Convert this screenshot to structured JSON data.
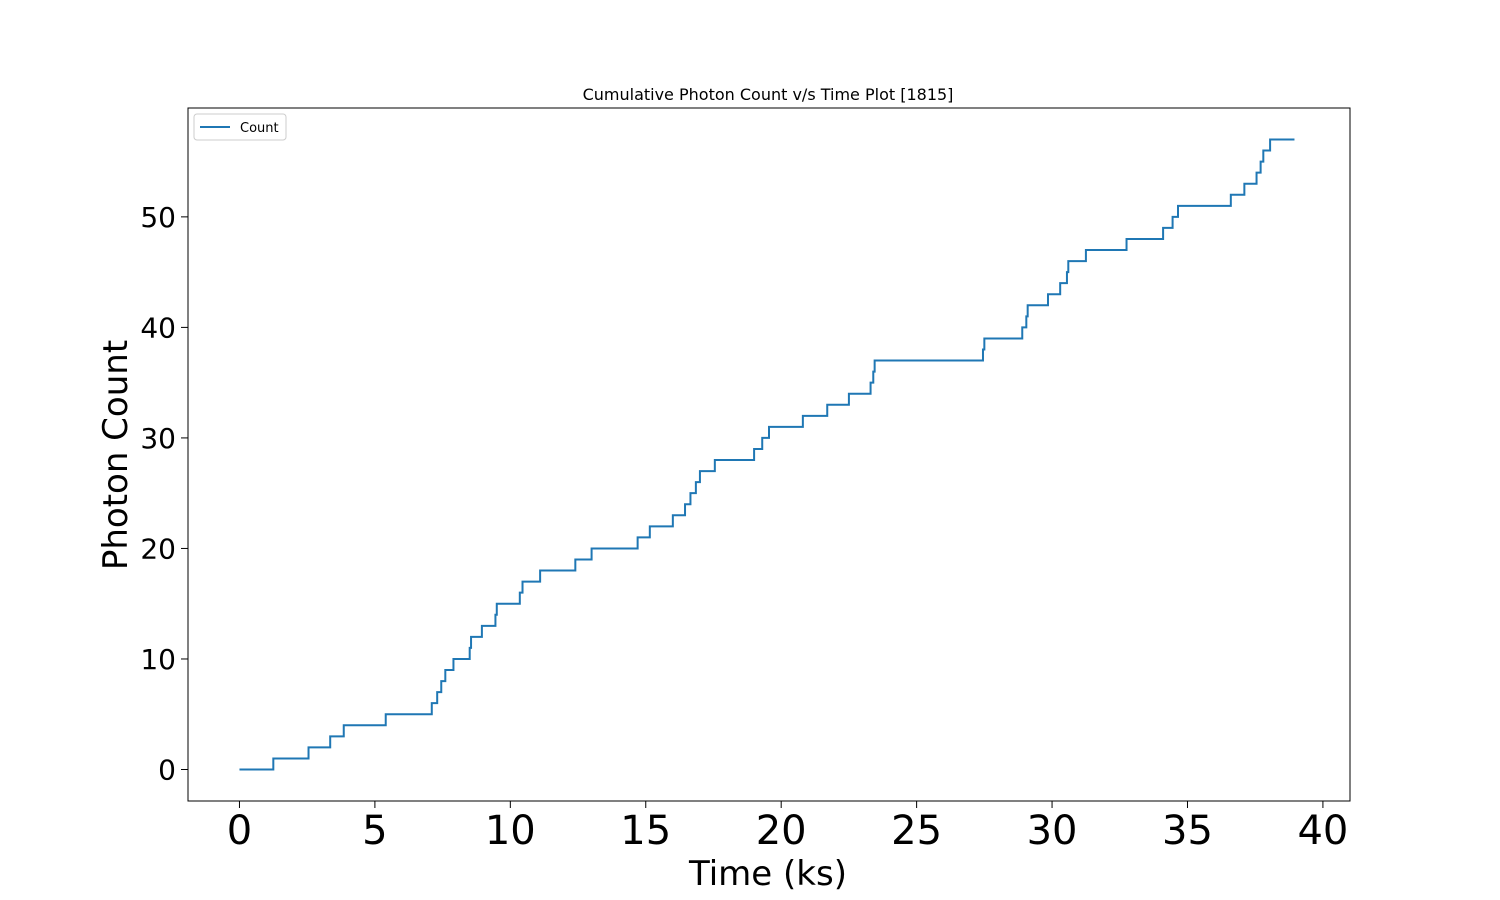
{
  "chart_data": {
    "type": "line",
    "step": true,
    "title": "Cumulative Photon Count v/s Time Plot [1815]",
    "xlabel": "Time (ks)",
    "ylabel": "Photon Count",
    "xlim": [
      -1.9,
      41.0
    ],
    "ylim": [
      -2.85,
      59.85
    ],
    "xticks": [
      0,
      5,
      10,
      15,
      20,
      25,
      30,
      35,
      40
    ],
    "xtick_labels": [
      "0",
      "5",
      "10",
      "15",
      "20",
      "25",
      "30",
      "35",
      "40"
    ],
    "yticks": [
      0,
      10,
      20,
      30,
      40,
      50
    ],
    "ytick_labels": [
      "0",
      "10",
      "20",
      "30",
      "40",
      "50"
    ],
    "grid": false,
    "legend_position": "top-left",
    "color": "#1f77b4",
    "series": [
      {
        "name": "Count",
        "x": [
          0,
          1.25,
          2.55,
          3.35,
          3.85,
          5.4,
          7.1,
          7.3,
          7.45,
          7.55,
          7.6,
          7.9,
          8.5,
          8.55,
          8.95,
          9.45,
          9.5,
          10.35,
          10.45,
          11.1,
          12.4,
          13.0,
          14.7,
          15.15,
          16.0,
          16.45,
          16.65,
          16.7,
          16.85,
          17.0,
          17.55,
          19.0,
          19.3,
          19.55,
          20.8,
          21.7,
          22.5,
          23.3,
          23.4,
          23.45,
          27.45,
          27.5,
          28.9,
          29.05,
          29.1,
          29.85,
          30.3,
          30.55,
          30.6,
          31.25,
          32.75,
          34.1,
          34.45,
          34.65,
          36.6,
          37.1,
          37.55,
          37.7,
          37.8,
          38.05,
          38.95
        ],
        "y": [
          0,
          1,
          2,
          3,
          4,
          5,
          6,
          7,
          8,
          8,
          9,
          10,
          11,
          12,
          13,
          14,
          15,
          16,
          17,
          18,
          19,
          20,
          21,
          22,
          23,
          24,
          25,
          25,
          26,
          27,
          28,
          29,
          30,
          31,
          32,
          33,
          34,
          35,
          36,
          37,
          38,
          39,
          40,
          41,
          42,
          43,
          44,
          45,
          46,
          47,
          48,
          49,
          50,
          51,
          52,
          53,
          54,
          55,
          56,
          57,
          57
        ]
      }
    ]
  }
}
